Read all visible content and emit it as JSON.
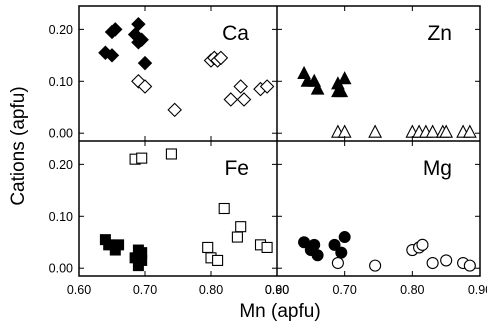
{
  "chart_data": {
    "type": "scatter",
    "layout": "2x2 shared-axis panels",
    "xlabel": "Mn (apfu)",
    "ylabel": "Cations (apfu)",
    "xlim": [
      0.6,
      0.9
    ],
    "ylim": [
      -0.015,
      0.245
    ],
    "x_ticks": [
      "0.60",
      "0.70",
      "0.80",
      "0.90"
    ],
    "y_ticks": [
      "0.00",
      "0.10",
      "0.20"
    ],
    "grid": false,
    "legend": "none",
    "panels": [
      {
        "label": "Ca",
        "position": "top-left",
        "series": [
          {
            "marker": "diamond",
            "filled": true,
            "points": [
              [
                0.64,
                0.155
              ],
              [
                0.65,
                0.15
              ],
              [
                0.65,
                0.195
              ],
              [
                0.655,
                0.2
              ],
              [
                0.685,
                0.19
              ],
              [
                0.69,
                0.21
              ],
              [
                0.69,
                0.175
              ],
              [
                0.695,
                0.18
              ],
              [
                0.7,
                0.135
              ]
            ]
          },
          {
            "marker": "diamond",
            "filled": false,
            "points": [
              [
                0.69,
                0.1
              ],
              [
                0.7,
                0.09
              ],
              [
                0.745,
                0.045
              ],
              [
                0.8,
                0.14
              ],
              [
                0.805,
                0.145
              ],
              [
                0.81,
                0.14
              ],
              [
                0.815,
                0.145
              ],
              [
                0.83,
                0.065
              ],
              [
                0.845,
                0.09
              ],
              [
                0.85,
                0.065
              ],
              [
                0.875,
                0.085
              ],
              [
                0.885,
                0.09
              ]
            ]
          }
        ]
      },
      {
        "label": "Zn",
        "position": "top-right",
        "series": [
          {
            "marker": "triangle",
            "filled": true,
            "points": [
              [
                0.64,
                0.115
              ],
              [
                0.645,
                0.1
              ],
              [
                0.655,
                0.1
              ],
              [
                0.66,
                0.085
              ],
              [
                0.69,
                0.095
              ],
              [
                0.69,
                0.08
              ],
              [
                0.7,
                0.105
              ],
              [
                0.695,
                0.08
              ]
            ]
          },
          {
            "marker": "triangle",
            "filled": false,
            "points": [
              [
                0.69,
                0.002
              ],
              [
                0.7,
                0.002
              ],
              [
                0.745,
                0.002
              ],
              [
                0.8,
                0.002
              ],
              [
                0.81,
                0.002
              ],
              [
                0.82,
                0.002
              ],
              [
                0.83,
                0.002
              ],
              [
                0.845,
                0.002
              ],
              [
                0.85,
                0.002
              ],
              [
                0.875,
                0.002
              ],
              [
                0.885,
                0.002
              ]
            ]
          }
        ]
      },
      {
        "label": "Fe",
        "position": "bottom-left",
        "series": [
          {
            "marker": "square",
            "filled": true,
            "points": [
              [
                0.64,
                0.055
              ],
              [
                0.645,
                0.045
              ],
              [
                0.655,
                0.035
              ],
              [
                0.66,
                0.045
              ],
              [
                0.685,
                0.02
              ],
              [
                0.69,
                0.035
              ],
              [
                0.69,
                0.005
              ],
              [
                0.695,
                0.015
              ],
              [
                0.695,
                0.03
              ]
            ]
          },
          {
            "marker": "square",
            "filled": false,
            "points": [
              [
                0.685,
                0.21
              ],
              [
                0.695,
                0.212
              ],
              [
                0.74,
                0.22
              ],
              [
                0.795,
                0.04
              ],
              [
                0.8,
                0.02
              ],
              [
                0.81,
                0.015
              ],
              [
                0.82,
                0.115
              ],
              [
                0.84,
                0.06
              ],
              [
                0.845,
                0.08
              ],
              [
                0.875,
                0.045
              ],
              [
                0.885,
                0.04
              ]
            ]
          }
        ]
      },
      {
        "label": "Mg",
        "position": "bottom-right",
        "series": [
          {
            "marker": "circle",
            "filled": true,
            "points": [
              [
                0.64,
                0.05
              ],
              [
                0.65,
                0.035
              ],
              [
                0.655,
                0.045
              ],
              [
                0.66,
                0.025
              ],
              [
                0.685,
                0.045
              ],
              [
                0.695,
                0.03
              ],
              [
                0.7,
                0.06
              ]
            ]
          },
          {
            "marker": "circle",
            "filled": false,
            "points": [
              [
                0.69,
                0.01
              ],
              [
                0.745,
                0.005
              ],
              [
                0.8,
                0.035
              ],
              [
                0.81,
                0.04
              ],
              [
                0.815,
                0.045
              ],
              [
                0.83,
                0.01
              ],
              [
                0.85,
                0.015
              ],
              [
                0.875,
                0.01
              ],
              [
                0.885,
                0.005
              ]
            ]
          }
        ]
      }
    ]
  }
}
